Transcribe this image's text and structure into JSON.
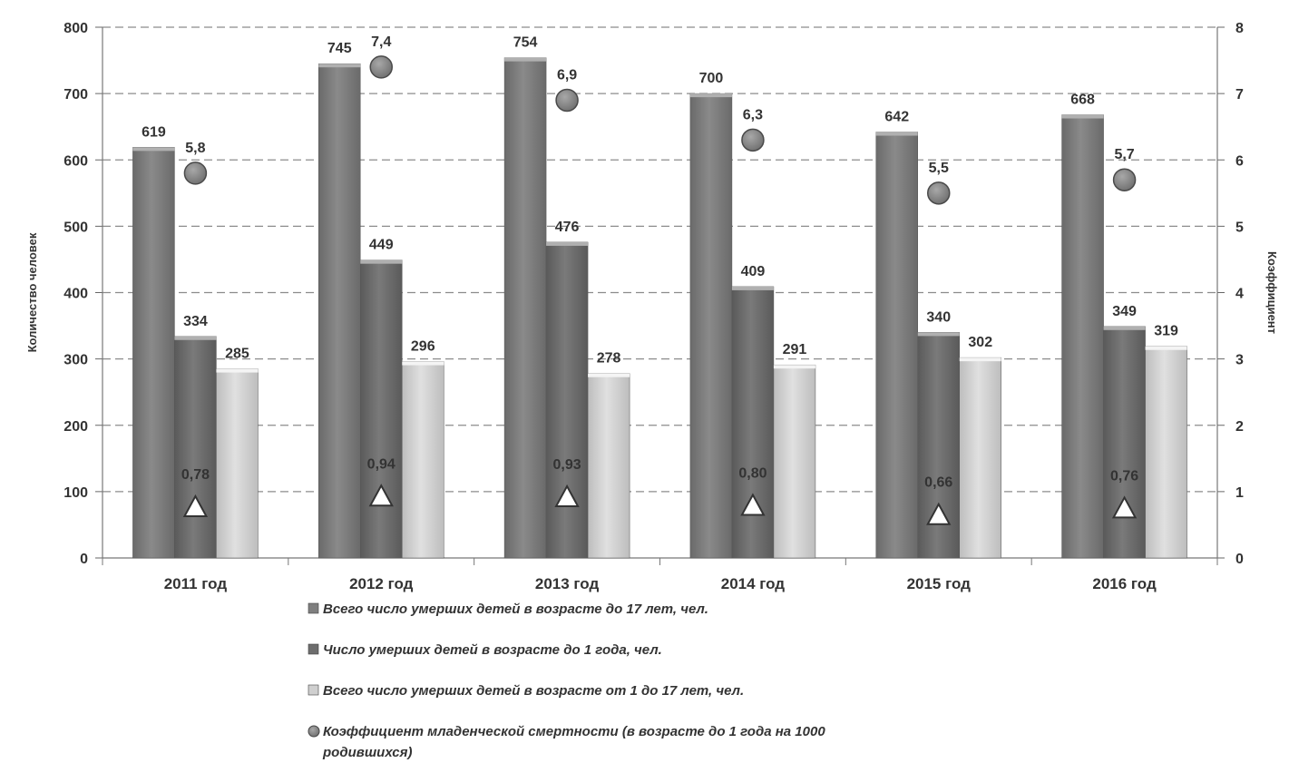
{
  "chart_data": {
    "type": "bar",
    "categories": [
      "2011 год",
      "2012 год",
      "2013 год",
      "2014 год",
      "2015 год",
      "2016 год"
    ],
    "ylabel": "Количество человек",
    "ylabel_right": "Коэффициент",
    "ylim": [
      0,
      800
    ],
    "ylim_right": [
      0,
      8
    ],
    "yticks": [
      "0",
      "100",
      "200",
      "300",
      "400",
      "500",
      "600",
      "700",
      "800"
    ],
    "yticks_right": [
      "0",
      "1",
      "2",
      "3",
      "4",
      "5",
      "6",
      "7",
      "8"
    ],
    "grid": true,
    "legend_position": "bottom",
    "series": [
      {
        "name": "Всего число умерших детей в возрасте до 17 лет, чел.",
        "kind": "bar",
        "axis": "left",
        "color": "#7f7f7f",
        "values": [
          619,
          745,
          754,
          700,
          642,
          668
        ],
        "labels": [
          "619",
          "745",
          "754",
          "700",
          "642",
          "668"
        ]
      },
      {
        "name": "Число умерших детей в возрасте до 1 года, чел.",
        "kind": "bar",
        "axis": "left",
        "color": "#6d6d6d",
        "values": [
          334,
          449,
          476,
          409,
          340,
          349
        ],
        "labels": [
          "334",
          "449",
          "476",
          "409",
          "340",
          "349"
        ]
      },
      {
        "name": "Всего число умерших детей в возрасте от 1 до 17 лет, чел.",
        "kind": "bar",
        "axis": "left",
        "color": "#cfcfcf",
        "values": [
          285,
          296,
          278,
          291,
          302,
          319
        ],
        "labels": [
          "285",
          "296",
          "278",
          "291",
          "302",
          "319"
        ]
      },
      {
        "name": "Коэффициент младенческой смертности (в возрасте до 1 года на 1000 родившихся)",
        "kind": "scatter",
        "marker": "circle",
        "axis": "right",
        "color": "#808080",
        "values": [
          5.8,
          7.4,
          6.9,
          6.3,
          5.5,
          5.7
        ],
        "labels": [
          "5,8",
          "7,4",
          "6,9",
          "6,3",
          "5,5",
          "5,7"
        ]
      },
      {
        "kind": "scatter",
        "marker": "triangle",
        "axis": "right",
        "color": "#ffffff",
        "values": [
          0.78,
          0.94,
          0.93,
          0.8,
          0.66,
          0.76
        ],
        "labels": [
          "0,78",
          "0,94",
          "0,93",
          "0,80",
          "0,66",
          "0,76"
        ]
      }
    ],
    "legend": [
      {
        "lines": [
          "Всего число умерших детей в возрасте до 17 лет, чел."
        ],
        "marker": "square",
        "color": "#7f7f7f"
      },
      {
        "lines": [
          "Число умерших детей в возрасте до 1 года, чел."
        ],
        "marker": "square",
        "color": "#6d6d6d"
      },
      {
        "lines": [
          "Всего число умерших детей в возрасте от 1 до 17 лет, чел."
        ],
        "marker": "square",
        "color": "#cfcfcf"
      },
      {
        "lines": [
          "Коэффициент младенческой смертности (в возрасте до 1 года на 1000",
          "родившихся)"
        ],
        "marker": "circle",
        "color": "#808080"
      }
    ]
  }
}
